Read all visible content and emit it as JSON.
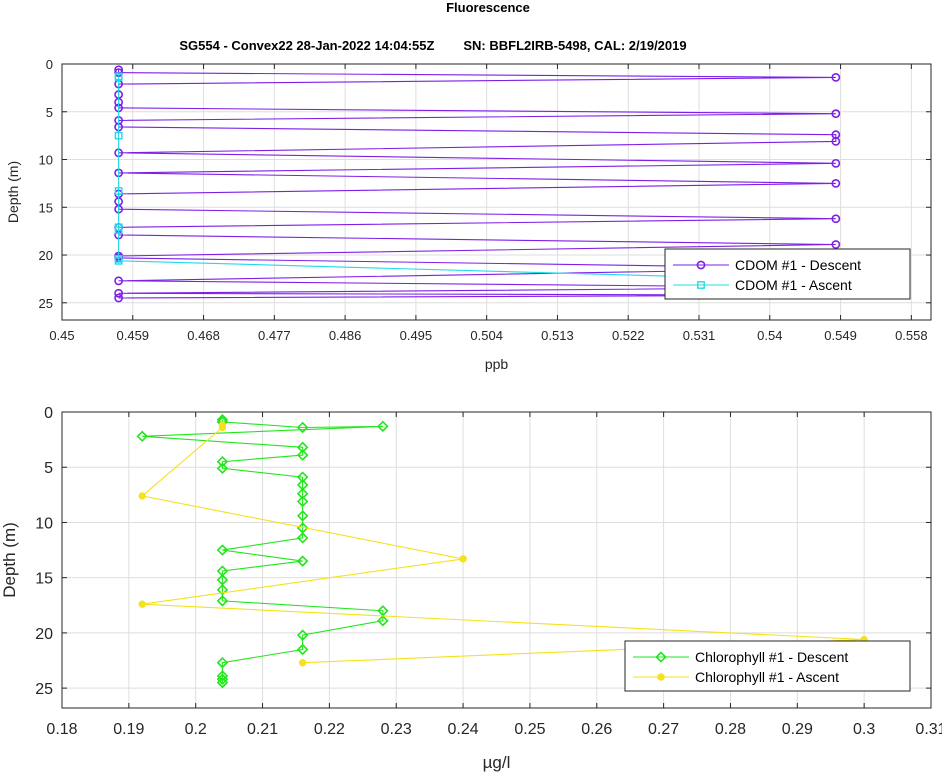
{
  "figure": {
    "title": "Fluorescence",
    "subtitle": "SG554 - Convex22 28-Jan-2022 14:04:55Z        SN: BBFL2IRB-5498, CAL: 2/19/2019"
  },
  "chart_data": [
    {
      "type": "line",
      "xlabel": "ppb",
      "ylabel": "Depth (m)",
      "xlim": [
        0.45,
        0.5605
      ],
      "ylim": [
        0,
        26.8
      ],
      "y_reversed": true,
      "grid": true,
      "legend_position": "bottom-right",
      "xticks": [
        "0.45",
        "0.459",
        "0.468",
        "0.477",
        "0.486",
        "0.495",
        "0.504",
        "0.513",
        "0.522",
        "0.531",
        "0.54",
        "0.549",
        "0.558"
      ],
      "yticks": [
        "0",
        "5",
        "10",
        "15",
        "20",
        "25"
      ],
      "series": [
        {
          "name": "CDOM #1 - Descent",
          "color": "#7e1fe6",
          "marker": "circle",
          "points": [
            [
              0.4572,
              0.6
            ],
            [
              0.4572,
              0.9
            ],
            [
              0.5484,
              1.4
            ],
            [
              0.4572,
              2.1
            ],
            [
              0.4572,
              3.2
            ],
            [
              0.4572,
              4.0
            ],
            [
              0.4572,
              4.6
            ],
            [
              0.5484,
              5.2
            ],
            [
              0.4572,
              5.9
            ],
            [
              0.4572,
              6.6
            ],
            [
              0.5484,
              7.4
            ],
            [
              0.5484,
              8.1
            ],
            [
              0.4572,
              9.3
            ],
            [
              0.5484,
              10.4
            ],
            [
              0.4572,
              11.4
            ],
            [
              0.5484,
              12.5
            ],
            [
              0.4572,
              13.6
            ],
            [
              0.4572,
              14.4
            ],
            [
              0.4572,
              15.2
            ],
            [
              0.5484,
              16.2
            ],
            [
              0.4572,
              17.1
            ],
            [
              0.4572,
              17.9
            ],
            [
              0.5484,
              18.9
            ],
            [
              0.4572,
              20.1
            ],
            [
              0.4572,
              20.3
            ],
            [
              0.5484,
              21.4
            ],
            [
              0.4572,
              22.7
            ],
            [
              0.5484,
              23.4
            ],
            [
              0.4572,
              24.0
            ],
            [
              0.5484,
              24.2
            ],
            [
              0.4572,
              24.5
            ]
          ]
        },
        {
          "name": "CDOM #1 - Ascent",
          "color": "#1fdbe8",
          "marker": "square",
          "points": [
            [
              0.4572,
              1.3
            ],
            [
              0.4572,
              1.4
            ],
            [
              0.4572,
              7.5
            ],
            [
              0.4572,
              13.3
            ],
            [
              0.4572,
              17.1
            ],
            [
              0.4572,
              17.4
            ],
            [
              0.4572,
              20.4
            ],
            [
              0.4572,
              20.6
            ],
            [
              0.5484,
              22.7
            ]
          ]
        }
      ]
    },
    {
      "type": "line",
      "xlabel": "µg/l",
      "ylabel": "Depth (m)",
      "xlim": [
        0.18,
        0.31
      ],
      "ylim": [
        0,
        26.8
      ],
      "y_reversed": true,
      "grid": true,
      "legend_position": "bottom-right",
      "xticks": [
        "0.18",
        "0.19",
        "0.2",
        "0.21",
        "0.22",
        "0.23",
        "0.24",
        "0.25",
        "0.26",
        "0.27",
        "0.28",
        "0.29",
        "0.3",
        "0.31"
      ],
      "yticks": [
        "0",
        "5",
        "10",
        "15",
        "20",
        "25"
      ],
      "series": [
        {
          "name": "Chlorophyll #1 - Descent",
          "color": "#22e61c",
          "marker": "diamond",
          "points": [
            [
              0.204,
              0.7
            ],
            [
              0.204,
              0.9
            ],
            [
              0.216,
              1.4
            ],
            [
              0.228,
              1.3
            ],
            [
              0.192,
              2.2
            ],
            [
              0.216,
              3.2
            ],
            [
              0.216,
              3.9
            ],
            [
              0.204,
              4.5
            ],
            [
              0.204,
              5.1
            ],
            [
              0.216,
              5.9
            ],
            [
              0.216,
              6.6
            ],
            [
              0.216,
              7.4
            ],
            [
              0.216,
              8.1
            ],
            [
              0.216,
              9.4
            ],
            [
              0.216,
              10.5
            ],
            [
              0.216,
              11.4
            ],
            [
              0.204,
              12.5
            ],
            [
              0.216,
              13.5
            ],
            [
              0.204,
              14.4
            ],
            [
              0.204,
              15.2
            ],
            [
              0.204,
              16.1
            ],
            [
              0.204,
              17.1
            ],
            [
              0.228,
              18.0
            ],
            [
              0.228,
              18.9
            ],
            [
              0.216,
              20.2
            ],
            [
              0.216,
              21.5
            ],
            [
              0.204,
              22.7
            ],
            [
              0.204,
              23.9
            ],
            [
              0.204,
              24.2
            ],
            [
              0.204,
              24.5
            ]
          ]
        },
        {
          "name": "Chlorophyll #1 - Ascent",
          "color": "#f5e21c",
          "marker": "filled-circle",
          "points": [
            [
              0.204,
              1.2
            ],
            [
              0.204,
              1.4
            ],
            [
              0.192,
              7.6
            ],
            [
              0.24,
              13.3
            ],
            [
              0.192,
              17.4
            ],
            [
              0.3,
              20.6
            ],
            [
              0.216,
              22.7
            ]
          ]
        }
      ]
    }
  ]
}
